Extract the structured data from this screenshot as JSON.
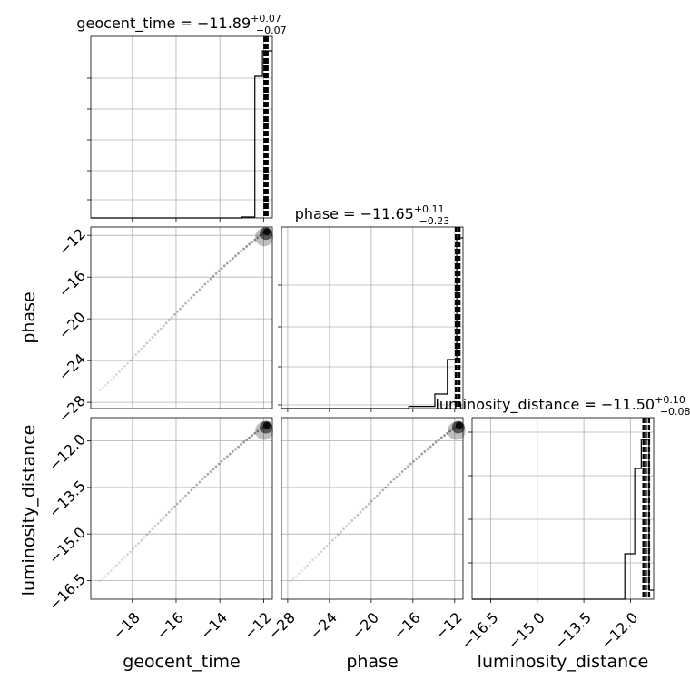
{
  "chart_data": {
    "type": "corner",
    "parameters": [
      "geocent_time",
      "phase",
      "luminosity_distance"
    ],
    "axis_labels": {
      "geocent_time": "geocent_time",
      "phase": "phase",
      "luminosity_distance": "luminosity_distance"
    },
    "titles": [
      {
        "param": "geocent_time",
        "label": "geocent_time",
        "median": "−11.89",
        "upper": "+0.07",
        "lower": "−0.07"
      },
      {
        "param": "phase",
        "label": "phase",
        "median": "−11.65",
        "upper": "+0.11",
        "lower": "−0.23"
      },
      {
        "param": "luminosity_distance",
        "label": "luminosity_distance",
        "median": "−11.50",
        "upper": "+0.10",
        "lower": "−0.08"
      }
    ],
    "ranges": {
      "geocent_time": [
        -19.9,
        -11.6
      ],
      "phase": [
        -28.6,
        -11.2
      ],
      "luminosity_distance": [
        -17.1,
        -11.25
      ]
    },
    "ticks": {
      "geocent_time": [
        -18,
        -16,
        -14,
        -12
      ],
      "phase": [
        -28,
        -24,
        -20,
        -16,
        -12
      ],
      "luminosity_distance": [
        -16.5,
        -15.0,
        -13.5,
        -12.0
      ]
    },
    "tick_labels": {
      "geocent_time": [
        "−18",
        "−16",
        "−14",
        "−12"
      ],
      "phase": [
        "−28",
        "−24",
        "−20",
        "−16",
        "−12"
      ],
      "luminosity_distance": [
        "−16.5",
        "−15.0",
        "−13.5",
        "−12.0"
      ]
    },
    "hist_ticks": {
      "geocent_time": [
        0.1,
        0.26,
        0.43,
        0.6,
        0.77
      ],
      "phase": [
        0.02,
        0.23,
        0.45,
        0.68
      ],
      "luminosity_distance": [
        0.2,
        0.44,
        0.68,
        0.92
      ]
    },
    "histograms": {
      "geocent_time": {
        "edges": [
          -13.0,
          -12.4,
          -12.05,
          -11.6
        ],
        "counts": [
          0.005,
          0.78,
          0.92
        ]
      },
      "phase": {
        "edges": [
          -16.4,
          -13.9,
          -12.7,
          -11.8,
          -11.2
        ],
        "counts": [
          0.012,
          0.08,
          0.27,
          0.94
        ]
      },
      "luminosity_distance": {
        "edges": [
          -12.18,
          -11.86,
          -11.65,
          -11.4,
          -11.25
        ],
        "counts": [
          0.25,
          0.72,
          0.88,
          0.05
        ]
      }
    },
    "quantiles": {
      "geocent_time": [
        -11.96,
        -11.89,
        -11.82
      ],
      "phase": [
        -11.88,
        -11.65,
        -11.54
      ],
      "luminosity_distance": [
        -11.58,
        -11.5,
        -11.4
      ]
    },
    "grid": true
  }
}
